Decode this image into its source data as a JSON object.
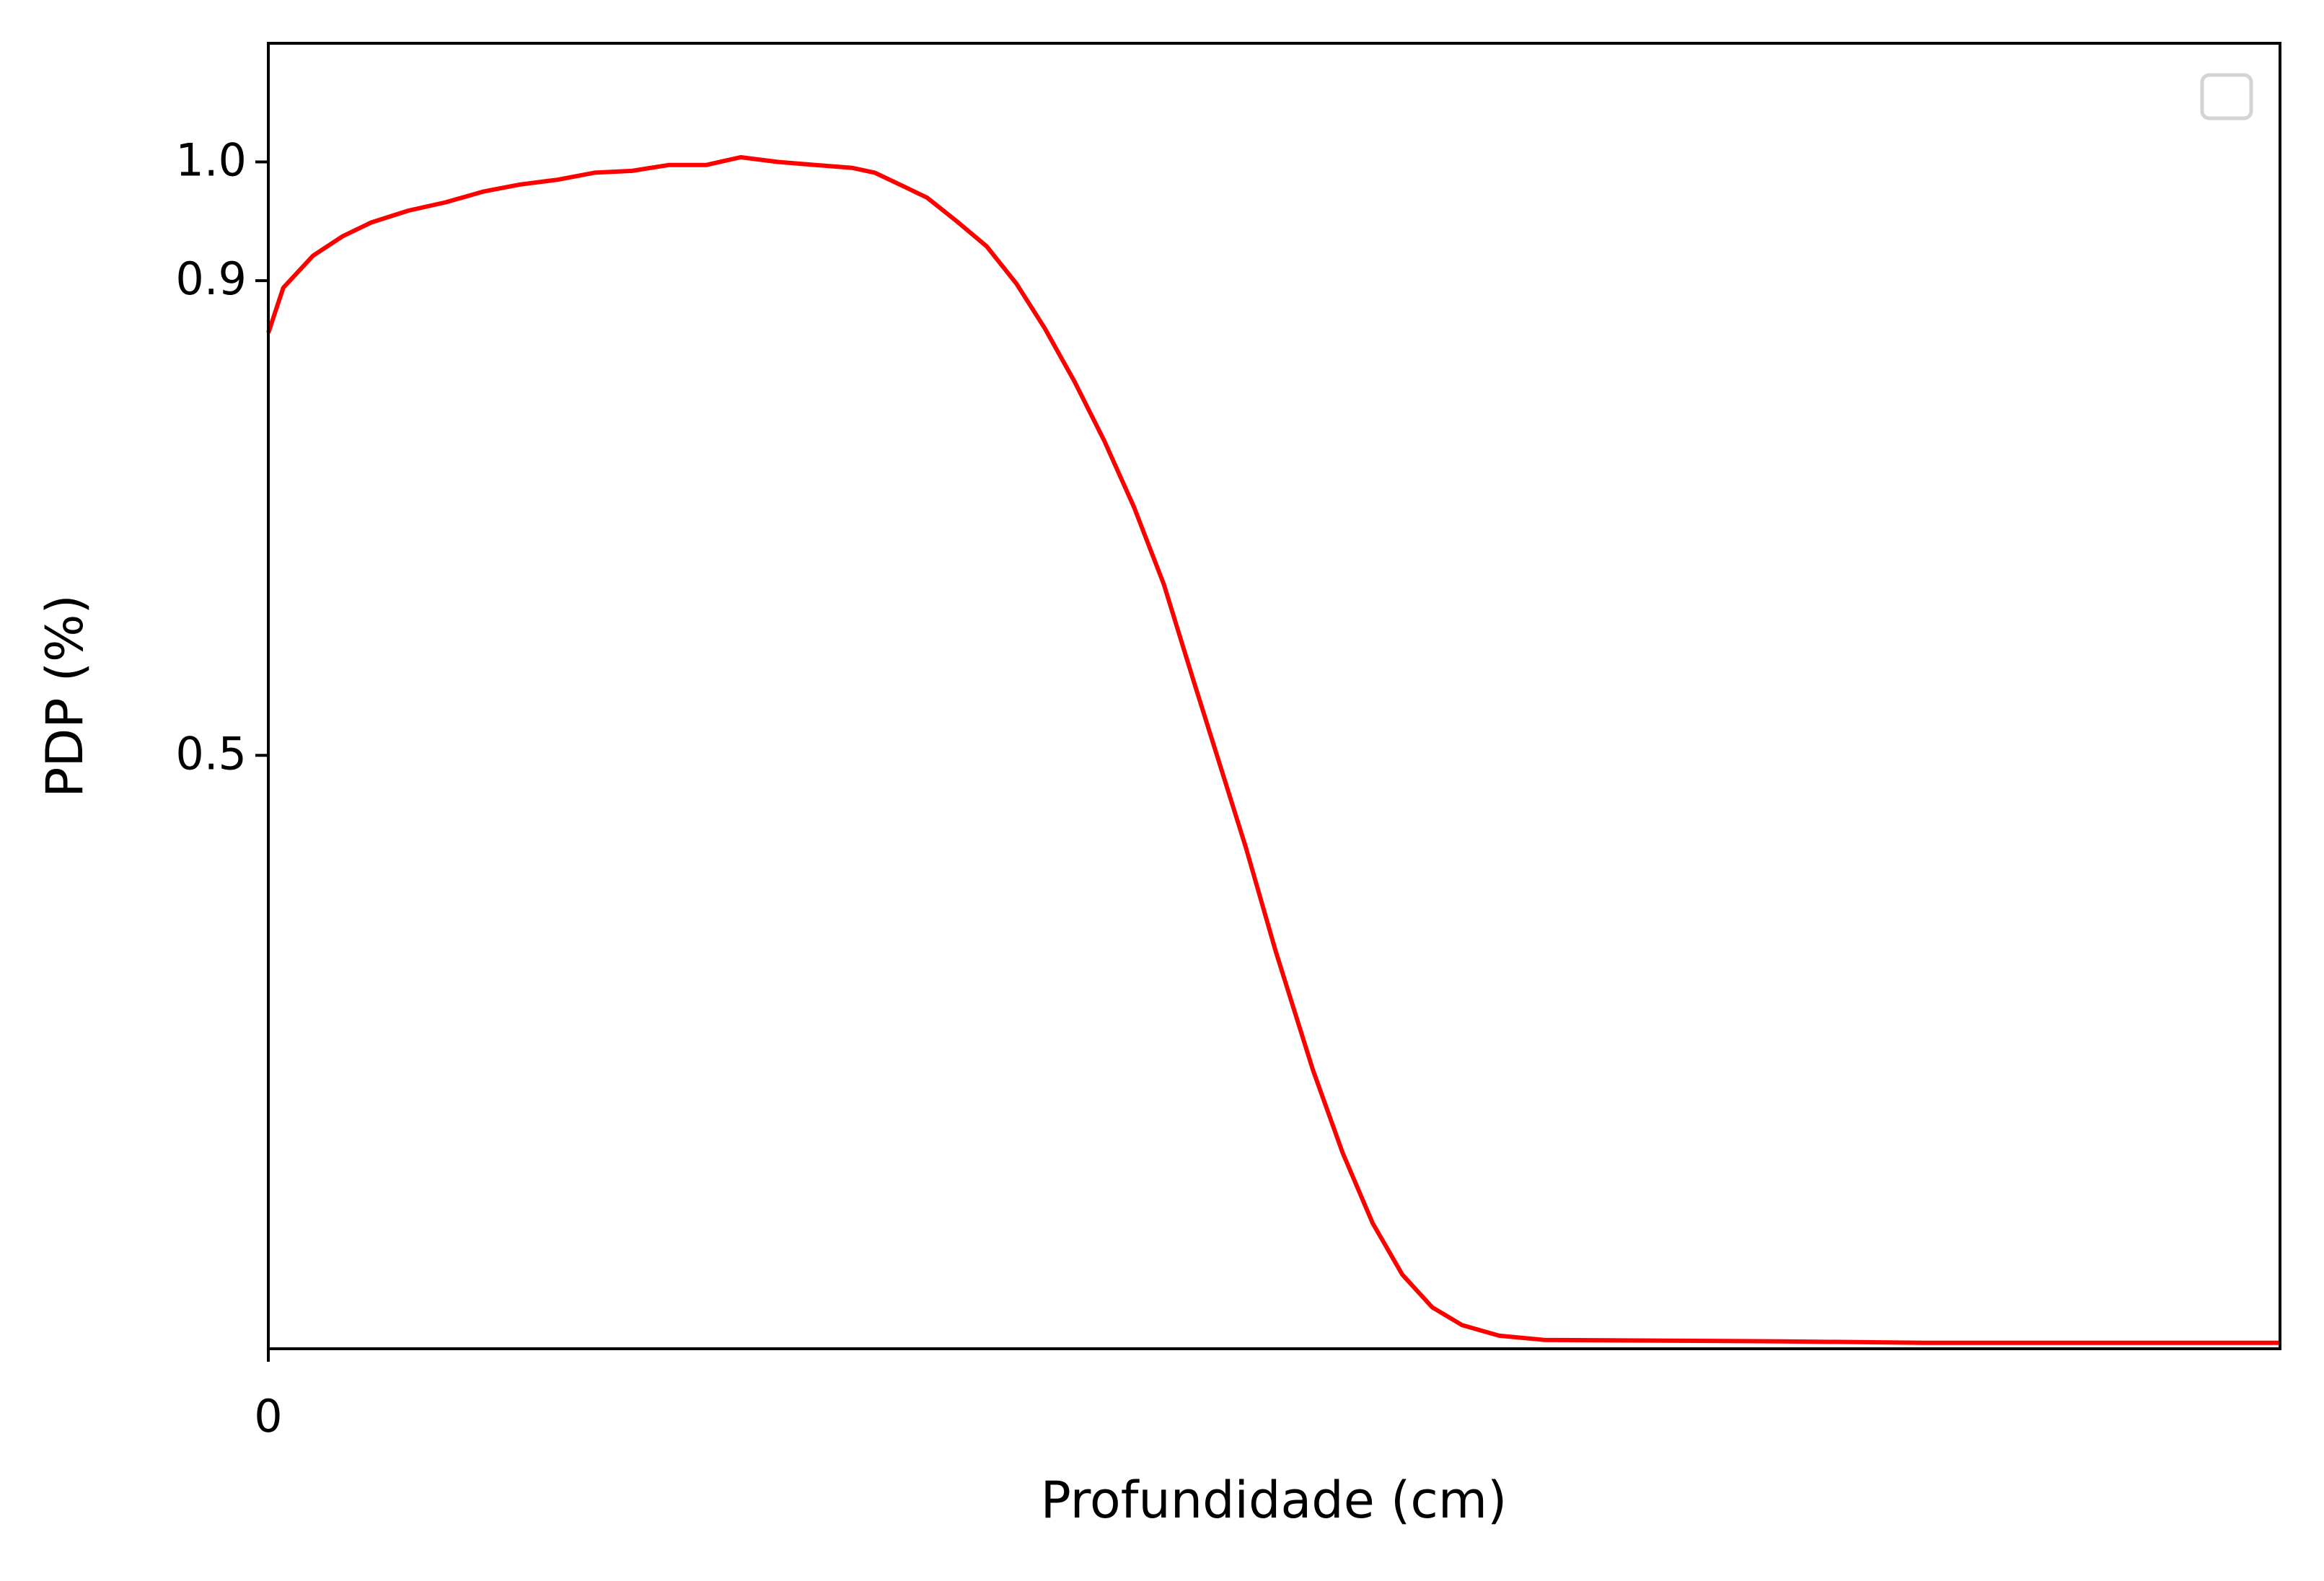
{
  "chart_data": {
    "type": "line",
    "xlabel": "Profundidade (cm)",
    "ylabel": "PDP (%)",
    "x": [
      0,
      1.0,
      3.0,
      5.0,
      6.9,
      9.4,
      11.9,
      14.4,
      16.9,
      19.4,
      21.9,
      24.4,
      26.9,
      29.4,
      31.7,
      34.2,
      36.7,
      39.2,
      40.7,
      42.7,
      44.2,
      46.2,
      48.2,
      50.2,
      52.1,
      54.1,
      56.1,
      58.1,
      60.1,
      62.1,
      63.6,
      65.6,
      67.6,
      70.1,
      72.1,
      74.1,
      76.1,
      78.1,
      80.1,
      82.6,
      85.6,
      91.6,
      101.5,
      111.4,
      121.4,
      135.0
    ],
    "series": [
      {
        "color": "#ff0000",
        "values": [
          0.856,
          0.894,
          0.921,
          0.9375,
          0.949,
          0.959,
          0.966,
          0.975,
          0.981,
          0.985,
          0.991,
          0.9925,
          0.9975,
          0.9975,
          1.004,
          1.0,
          0.9975,
          0.995,
          0.991,
          0.979,
          0.97,
          0.95,
          0.929,
          0.8975,
          0.86,
          0.815,
          0.765,
          0.709,
          0.644,
          0.5625,
          0.5025,
          0.4225,
          0.335,
          0.235,
          0.165,
          0.106,
          0.0625,
          0.035,
          0.02,
          0.011,
          0.0075,
          0.007,
          0.00625,
          0.005,
          0.005,
          0.005
        ]
      }
    ],
    "xlim": [
      0,
      135
    ],
    "xticks": [
      0
    ],
    "ylim": [
      0,
      1.1
    ],
    "yticks": [
      0.5,
      0.9,
      {
        "value": 1,
        "label": "1.0"
      }
    ],
    "grid": false
  }
}
